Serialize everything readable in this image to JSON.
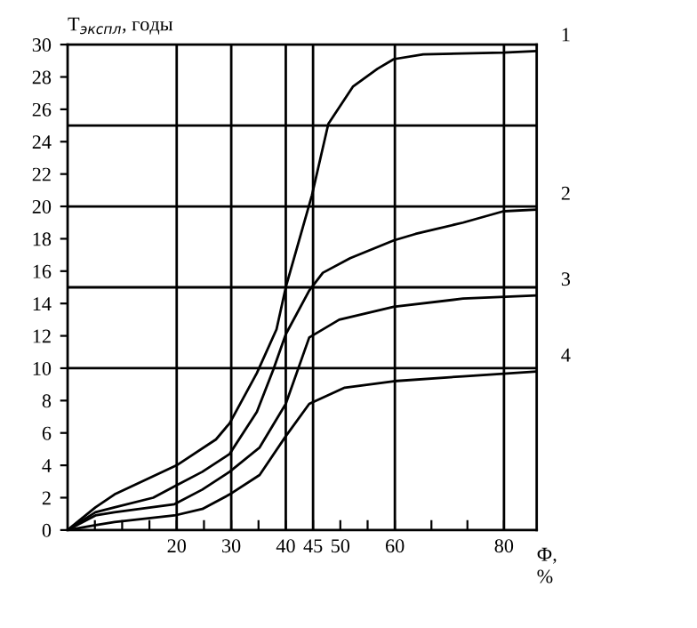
{
  "chart_data": {
    "type": "line",
    "ylabel": "T$_{экспл}$, годы",
    "xlabel": "Ф,\n%",
    "xlim": [
      0,
      86
    ],
    "ylim": [
      0,
      30
    ],
    "xticks": [
      {
        "value": 5,
        "label": null
      },
      {
        "value": 10,
        "label": null
      },
      {
        "value": 15,
        "label": null
      },
      20,
      {
        "value": 25,
        "label": null
      },
      30,
      {
        "value": 35,
        "label": null
      },
      40,
      45,
      50,
      {
        "value": 55,
        "label": null
      },
      60,
      {
        "value": 66.7,
        "label": null
      },
      {
        "value": 73.3,
        "label": null
      },
      80
    ],
    "yticks": [
      0,
      2,
      4,
      6,
      8,
      10,
      12,
      14,
      16,
      18,
      20,
      22,
      24,
      26,
      28,
      30
    ],
    "grid": false,
    "marker": "none",
    "line_style": "solid",
    "ref_lines": [
      {
        "axis": "x",
        "value": 20
      },
      {
        "axis": "x",
        "value": 30
      },
      {
        "axis": "x",
        "value": 40
      },
      {
        "axis": "x",
        "value": 45
      },
      {
        "axis": "x",
        "value": 60
      },
      {
        "axis": "x",
        "value": 80
      },
      {
        "axis": "y",
        "value": 10
      },
      {
        "axis": "y",
        "value": 15
      },
      {
        "axis": "y",
        "value": 20
      },
      {
        "axis": "y",
        "value": 25
      }
    ],
    "series": [
      {
        "name": "1",
        "color": "#000000",
        "x": [
          0,
          5.1,
          8.6,
          20,
          27.2,
          29.7,
          34.7,
          38.3,
          40,
          44.8,
          47.8,
          52.3,
          56.8,
          59.8,
          65.2,
          79.9,
          85.9
        ],
        "values": [
          0,
          1.4,
          2.2,
          4.0,
          5.6,
          6.6,
          9.7,
          12.4,
          15.0,
          20.7,
          25.1,
          27.4,
          28.5,
          29.1,
          29.4,
          29.5,
          29.6
        ]
      },
      {
        "name": "2",
        "color": "#000000",
        "x": [
          0,
          5.1,
          8.6,
          15.7,
          19.6,
          24.7,
          29.7,
          34.7,
          37.7,
          40,
          44.3,
          46.8,
          51.8,
          59.8,
          63.8,
          72.5,
          79.9,
          85.9
        ],
        "values": [
          0,
          1.1,
          1.4,
          2.0,
          2.7,
          3.6,
          4.7,
          7.3,
          9.9,
          12.1,
          14.8,
          15.9,
          16.8,
          17.9,
          18.3,
          19.0,
          19.7,
          19.8
        ]
      },
      {
        "name": "3",
        "color": "#000000",
        "x": [
          0,
          5.1,
          8.6,
          19.6,
          24.7,
          29.7,
          35.2,
          40,
          44.3,
          49.8,
          59.8,
          72.5,
          85.9
        ],
        "values": [
          0,
          0.9,
          1.1,
          1.6,
          2.5,
          3.6,
          5.1,
          7.8,
          11.9,
          13.0,
          13.8,
          14.3,
          14.5
        ]
      },
      {
        "name": "4",
        "color": "#000000",
        "x": [
          0,
          5.1,
          8.6,
          19.6,
          24.7,
          29.7,
          35.2,
          40,
          44.3,
          50.8,
          59.8,
          72.5,
          85.9
        ],
        "values": [
          0,
          0.3,
          0.5,
          0.9,
          1.3,
          2.2,
          3.4,
          5.8,
          7.8,
          8.8,
          9.2,
          9.5,
          9.8
        ]
      }
    ]
  }
}
